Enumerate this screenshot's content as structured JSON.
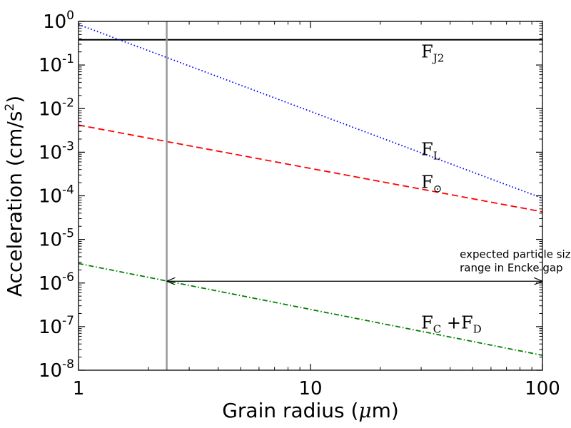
{
  "chart_data": {
    "type": "line",
    "xscale": "log",
    "yscale": "log",
    "xlim": [
      1,
      100
    ],
    "ylim": [
      1e-08,
      1
    ],
    "grid": false,
    "xlabel": "Grain radius (",
    "xlabel_unit_symbol": "μ",
    "xlabel_unit_rest": "m)",
    "ylabel_prefix": "Acceleration (cm/s",
    "ylabel_sup": "2",
    "ylabel_suffix": ")",
    "x_ticks": [
      {
        "value": 1,
        "label": "1"
      },
      {
        "value": 10,
        "label": "10"
      },
      {
        "value": 100,
        "label": "100"
      }
    ],
    "y_ticks": [
      {
        "value": 1,
        "base": "10",
        "exp": "0"
      },
      {
        "value": 0.1,
        "base": "10",
        "exp": "-1"
      },
      {
        "value": 0.01,
        "base": "10",
        "exp": "-2"
      },
      {
        "value": 0.001,
        "base": "10",
        "exp": "-3"
      },
      {
        "value": 0.0001,
        "base": "10",
        "exp": "-4"
      },
      {
        "value": 1e-05,
        "base": "10",
        "exp": "-5"
      },
      {
        "value": 1e-06,
        "base": "10",
        "exp": "-6"
      },
      {
        "value": 1e-07,
        "base": "10",
        "exp": "-7"
      },
      {
        "value": 1e-08,
        "base": "10",
        "exp": "-8"
      }
    ],
    "series": [
      {
        "key": "fj2",
        "x": [
          1,
          100
        ],
        "y": [
          0.38,
          0.38
        ],
        "color": "#000000",
        "style": "solid"
      },
      {
        "key": "fl",
        "x": [
          1,
          100
        ],
        "y": [
          0.85,
          8.8e-05
        ],
        "color": "#0000ff",
        "style": "dotted"
      },
      {
        "key": "fsun",
        "x": [
          1,
          100
        ],
        "y": [
          0.0042,
          4.3e-05
        ],
        "color": "#ff0000",
        "style": "dashed"
      },
      {
        "key": "fcd",
        "x": [
          1,
          100
        ],
        "y": [
          2.8e-06,
          2.2e-08
        ],
        "color": "#008000",
        "style": "dashdot"
      }
    ],
    "curve_labels": [
      {
        "key": "fj2",
        "main": "F",
        "sub": "J2",
        "x": 30,
        "y": 0.15
      },
      {
        "key": "fl",
        "main": "F",
        "sub": "L",
        "x": 30,
        "y": 0.00085
      },
      {
        "key": "fsun",
        "main": "F",
        "sub": "⊙",
        "x": 30,
        "y": 0.00015
      },
      {
        "key": "fcd",
        "main": "F",
        "sub": "C",
        "plus": " +F",
        "sub2": "D",
        "x": 30,
        "y": 9e-08
      }
    ],
    "vertical_line": {
      "x": 2.4,
      "color": "#999999"
    },
    "range_arrow": {
      "x_from": 2.4,
      "x_to": 100,
      "y": 1.1e-06
    },
    "annotation_lines": [
      "expected particle size",
      "range in Encke gap"
    ],
    "annotation_pos": {
      "x": 44,
      "y": 3.8e-06
    }
  }
}
